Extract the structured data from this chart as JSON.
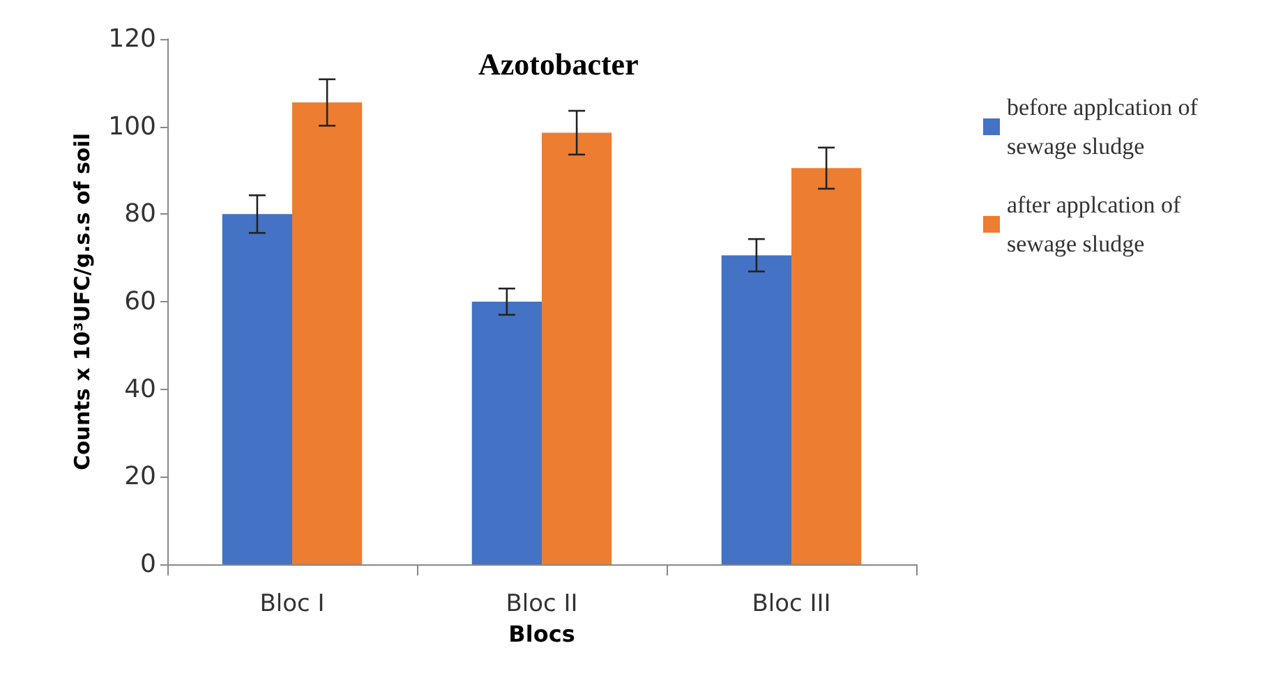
{
  "chart_data": {
    "type": "bar",
    "title": "Azotobacter",
    "xlabel": "Blocs",
    "ylabel": "Counts x 10³UFC/g.s.s of soil",
    "categories": [
      "Bloc I",
      "Bloc II",
      "Bloc III"
    ],
    "series": [
      {
        "name": "before applcation of sewage sludge",
        "color": "#4472c4",
        "values": [
          80,
          60,
          70.6
        ],
        "errors": [
          4.3,
          3,
          3.7
        ]
      },
      {
        "name": "after applcation of sewage sludge",
        "color": "#ed7d31",
        "values": [
          105.5,
          98.6,
          90.5
        ],
        "errors": [
          5.3,
          5,
          4.7
        ]
      }
    ],
    "ylim": [
      0,
      120
    ],
    "yticks": [
      0,
      20,
      40,
      60,
      80,
      100,
      120
    ],
    "grid": false,
    "legend": "top right"
  }
}
